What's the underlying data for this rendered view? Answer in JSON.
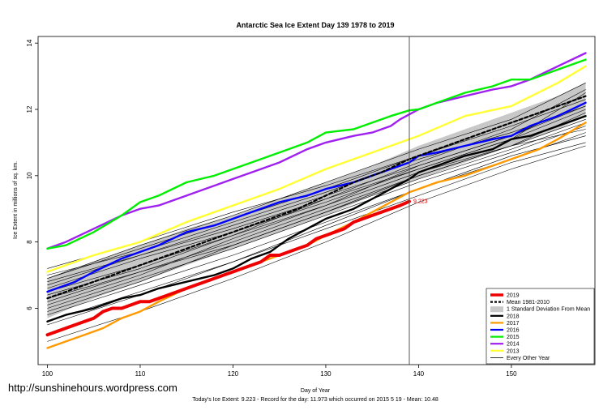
{
  "colors": {
    "y2019": "#ee0000",
    "mean": "#000000",
    "sd_band": "#c8c8c8",
    "y2018": "#000000",
    "y2017": "#ff9900",
    "y2016": "#0000ff",
    "y2015": "#00ee00",
    "y2014": "#a020f0",
    "y2013": "#ffff33",
    "other": "#000000"
  },
  "watermark": "http://sunshinehours.wordpress.com",
  "footer": "Today's Ice Extent: 9.223  - Record for the day: 11.973 which occurred on 2015 5 19  - Mean: 10.48",
  "chart_data": {
    "type": "line",
    "title": "Antarctic Sea Ice Extent Day 139 1978 to 2019",
    "xlabel": "Day of Year",
    "ylabel": "Ice Extent in millions of sq. km.",
    "xlim": [
      99,
      159
    ],
    "ylim": [
      4.3,
      14.2
    ],
    "x_ticks": [
      100,
      110,
      120,
      130,
      140,
      150
    ],
    "y_ticks": [
      6,
      8,
      10,
      12,
      14
    ],
    "current_day": 139,
    "current_value_label": "9.223",
    "legend_position": "bottom-right",
    "legend": [
      {
        "label": "2019",
        "key": "y2019",
        "style": "thick"
      },
      {
        "label": "Mean 1981-2010",
        "key": "mean",
        "style": "dashed"
      },
      {
        "label": "1 Standard Deviation From Mean",
        "key": "sd_band",
        "style": "band"
      },
      {
        "label": "2018",
        "key": "y2018",
        "style": "line"
      },
      {
        "label": "2017",
        "key": "y2017",
        "style": "line"
      },
      {
        "label": "2016",
        "key": "y2016",
        "style": "line"
      },
      {
        "label": "2015",
        "key": "y2015",
        "style": "line"
      },
      {
        "label": "2014",
        "key": "y2014",
        "style": "line"
      },
      {
        "label": "2013",
        "key": "y2013",
        "style": "line"
      },
      {
        "label": "Every Other Year",
        "key": "other",
        "style": "thin"
      }
    ],
    "sd_band": {
      "x": [
        100,
        105,
        110,
        115,
        120,
        125,
        130,
        135,
        140,
        145,
        150,
        155,
        158
      ],
      "upper": [
        6.9,
        7.4,
        7.9,
        8.4,
        8.8,
        9.3,
        9.8,
        10.3,
        10.9,
        11.4,
        11.9,
        12.4,
        12.8
      ],
      "lower": [
        5.7,
        6.3,
        6.8,
        7.3,
        7.8,
        8.3,
        8.8,
        9.4,
        9.9,
        10.4,
        10.9,
        11.4,
        11.8
      ]
    },
    "series": [
      {
        "name": "Every Other Year",
        "key": "other",
        "x": [
          100,
          110,
          120,
          130,
          140,
          150,
          158
        ],
        "values": [
          6.8,
          7.6,
          8.5,
          9.4,
          10.3,
          11.2,
          12.1
        ]
      },
      {
        "name": "Every Other Year",
        "key": "other",
        "x": [
          100,
          110,
          120,
          130,
          140,
          150,
          158
        ],
        "values": [
          6.0,
          6.9,
          7.8,
          8.8,
          9.8,
          10.7,
          11.5
        ]
      },
      {
        "name": "Every Other Year",
        "key": "other",
        "x": [
          100,
          110,
          120,
          130,
          140,
          150,
          158
        ],
        "values": [
          6.5,
          7.3,
          8.2,
          9.1,
          10.1,
          10.9,
          11.7
        ]
      },
      {
        "name": "Every Other Year",
        "key": "other",
        "x": [
          100,
          110,
          120,
          130,
          140,
          150,
          158
        ],
        "values": [
          5.9,
          6.8,
          7.9,
          8.9,
          10.0,
          10.9,
          11.4
        ]
      },
      {
        "name": "Every Other Year",
        "key": "other",
        "x": [
          100,
          110,
          120,
          130,
          140,
          150,
          158
        ],
        "values": [
          6.9,
          7.8,
          8.7,
          9.6,
          10.6,
          11.5,
          12.3
        ]
      },
      {
        "name": "Every Other Year",
        "key": "other",
        "x": [
          100,
          110,
          120,
          130,
          140,
          150,
          158
        ],
        "values": [
          6.3,
          7.1,
          8.0,
          9.0,
          10.0,
          10.9,
          11.9
        ]
      },
      {
        "name": "Every Other Year",
        "key": "other",
        "x": [
          100,
          110,
          120,
          130,
          140,
          150,
          158
        ],
        "values": [
          5.8,
          6.7,
          7.6,
          8.6,
          9.6,
          10.6,
          11.2
        ]
      },
      {
        "name": "Every Other Year",
        "key": "other",
        "x": [
          100,
          110,
          120,
          130,
          140,
          150,
          158
        ],
        "values": [
          7.2,
          8.0,
          8.9,
          9.7,
          10.6,
          11.6,
          12.4
        ]
      },
      {
        "name": "Every Other Year",
        "key": "other",
        "x": [
          100,
          110,
          120,
          130,
          140,
          150,
          158
        ],
        "values": [
          6.6,
          7.5,
          8.3,
          9.2,
          10.2,
          11.1,
          12.0
        ]
      },
      {
        "name": "Every Other Year",
        "key": "other",
        "x": [
          100,
          110,
          120,
          130,
          140,
          150,
          158
        ],
        "values": [
          6.1,
          7.0,
          8.1,
          9.1,
          10.3,
          11.2,
          12.2
        ]
      },
      {
        "name": "Every Other Year",
        "key": "other",
        "x": [
          100,
          110,
          120,
          130,
          140,
          150,
          158
        ],
        "values": [
          5.6,
          6.5,
          7.4,
          8.4,
          9.4,
          10.4,
          11.0
        ]
      },
      {
        "name": "Every Other Year",
        "key": "other",
        "x": [
          100,
          110,
          120,
          130,
          140,
          150,
          158
        ],
        "values": [
          7.0,
          7.7,
          8.6,
          9.5,
          10.5,
          11.3,
          12.1
        ]
      },
      {
        "name": "Every Other Year",
        "key": "other",
        "x": [
          100,
          110,
          120,
          130,
          140,
          150,
          158
        ],
        "values": [
          6.4,
          7.2,
          8.2,
          9.3,
          10.2,
          11.1,
          12.5
        ]
      },
      {
        "name": "Every Other Year",
        "key": "other",
        "x": [
          100,
          110,
          120,
          130,
          140,
          150,
          158
        ],
        "values": [
          6.2,
          7.1,
          7.9,
          8.9,
          9.9,
          10.8,
          11.6
        ]
      },
      {
        "name": "Every Other Year",
        "key": "other",
        "x": [
          100,
          110,
          120,
          130,
          140,
          150,
          158
        ],
        "values": [
          5.0,
          5.9,
          6.9,
          8.0,
          9.2,
          10.2,
          10.9
        ]
      },
      {
        "name": "Every Other Year",
        "key": "other",
        "x": [
          100,
          110,
          120,
          130,
          140,
          150,
          158
        ],
        "values": [
          6.7,
          7.6,
          8.4,
          9.3,
          10.4,
          11.4,
          12.6
        ]
      },
      {
        "name": "Every Other Year",
        "key": "other",
        "x": [
          100,
          110,
          120,
          130,
          140,
          150,
          158
        ],
        "values": [
          5.5,
          6.4,
          7.4,
          8.5,
          9.6,
          10.5,
          11.3
        ]
      },
      {
        "name": "Every Other Year",
        "key": "other",
        "x": [
          100,
          110,
          120,
          130,
          140,
          150,
          158
        ],
        "values": [
          6.9,
          7.9,
          8.8,
          9.8,
          10.8,
          11.7,
          12.8
        ]
      },
      {
        "name": "2013",
        "key": "y2013",
        "x": [
          100,
          105,
          110,
          115,
          120,
          125,
          130,
          135,
          140,
          145,
          150,
          155,
          158
        ],
        "values": [
          7.1,
          7.6,
          8.0,
          8.6,
          9.1,
          9.6,
          10.2,
          10.7,
          11.2,
          11.8,
          12.1,
          12.8,
          13.3
        ]
      },
      {
        "name": "2014",
        "key": "y2014",
        "x": [
          100,
          102,
          105,
          108,
          110,
          112,
          115,
          118,
          120,
          122,
          125,
          128,
          130,
          133,
          135,
          137,
          138,
          140,
          142,
          145,
          148,
          150,
          152,
          155,
          158
        ],
        "values": [
          7.8,
          8.0,
          8.4,
          8.8,
          9.0,
          9.1,
          9.4,
          9.7,
          9.9,
          10.1,
          10.4,
          10.8,
          11.0,
          11.2,
          11.3,
          11.5,
          11.7,
          12.0,
          12.2,
          12.4,
          12.6,
          12.7,
          12.9,
          13.3,
          13.7
        ]
      },
      {
        "name": "2015",
        "key": "y2015",
        "x": [
          100,
          102,
          105,
          108,
          110,
          112,
          115,
          118,
          120,
          122,
          125,
          128,
          130,
          133,
          135,
          137,
          139,
          140,
          142,
          145,
          148,
          150,
          152,
          155,
          158
        ],
        "values": [
          7.8,
          7.9,
          8.3,
          8.8,
          9.2,
          9.4,
          9.8,
          10.0,
          10.2,
          10.4,
          10.7,
          11.0,
          11.3,
          11.4,
          11.6,
          11.8,
          11.97,
          12.0,
          12.2,
          12.5,
          12.7,
          12.9,
          12.9,
          13.2,
          13.5
        ]
      },
      {
        "name": "2016",
        "key": "y2016",
        "x": [
          100,
          103,
          105,
          108,
          110,
          112,
          115,
          118,
          120,
          122,
          125,
          128,
          130,
          133,
          135,
          137,
          139,
          140,
          142,
          145,
          148,
          150,
          152,
          155,
          158
        ],
        "values": [
          6.5,
          6.8,
          7.1,
          7.5,
          7.7,
          7.9,
          8.3,
          8.5,
          8.7,
          8.9,
          9.2,
          9.4,
          9.6,
          9.8,
          10.0,
          10.2,
          10.4,
          10.6,
          10.7,
          10.9,
          11.1,
          11.2,
          11.5,
          11.8,
          12.2
        ]
      },
      {
        "name": "2017",
        "key": "y2017",
        "x": [
          100,
          102,
          104,
          106,
          108,
          110,
          112,
          115,
          118,
          120,
          122,
          125,
          128,
          130,
          133,
          135,
          137,
          139,
          140,
          142,
          145,
          148,
          150,
          153,
          155,
          158
        ],
        "values": [
          4.8,
          5.0,
          5.2,
          5.4,
          5.7,
          5.9,
          6.2,
          6.6,
          6.9,
          7.1,
          7.3,
          7.6,
          7.9,
          8.2,
          8.6,
          8.9,
          9.2,
          9.5,
          9.6,
          9.8,
          10.0,
          10.3,
          10.5,
          10.8,
          11.1,
          11.6
        ]
      },
      {
        "name": "2018",
        "key": "y2018",
        "x": [
          100,
          102,
          105,
          108,
          110,
          112,
          115,
          118,
          120,
          122,
          124,
          125,
          126,
          128,
          130,
          133,
          135,
          137,
          139,
          140,
          142,
          145,
          148,
          150,
          152,
          155,
          158
        ],
        "values": [
          5.6,
          5.8,
          6.0,
          6.3,
          6.4,
          6.6,
          6.8,
          7.0,
          7.2,
          7.5,
          7.7,
          7.9,
          8.1,
          8.4,
          8.7,
          9.0,
          9.3,
          9.6,
          9.9,
          10.1,
          10.3,
          10.6,
          10.8,
          11.1,
          11.2,
          11.5,
          11.8
        ]
      },
      {
        "name": "2019",
        "key": "y2019",
        "x": [
          100,
          101,
          102,
          103,
          104,
          105,
          106,
          107,
          108,
          109,
          110,
          111,
          112,
          113,
          114,
          115,
          116,
          117,
          118,
          119,
          120,
          121,
          122,
          123,
          124,
          125,
          126,
          127,
          128,
          129,
          130,
          131,
          132,
          133,
          134,
          135,
          136,
          137,
          138,
          139
        ],
        "values": [
          5.2,
          5.3,
          5.4,
          5.5,
          5.6,
          5.7,
          5.9,
          6.0,
          6.0,
          6.1,
          6.2,
          6.2,
          6.3,
          6.4,
          6.5,
          6.6,
          6.7,
          6.8,
          6.9,
          7.0,
          7.1,
          7.2,
          7.3,
          7.4,
          7.6,
          7.6,
          7.7,
          7.8,
          7.9,
          8.1,
          8.2,
          8.3,
          8.4,
          8.6,
          8.7,
          8.8,
          8.9,
          9.0,
          9.1,
          9.223
        ]
      },
      {
        "name": "Mean 1981-2010",
        "key": "mean",
        "x": [
          100,
          103,
          106,
          109,
          112,
          115,
          118,
          121,
          124,
          127,
          130,
          133,
          136,
          139,
          142,
          145,
          148,
          151,
          154,
          158
        ],
        "values": [
          6.3,
          6.6,
          6.9,
          7.2,
          7.5,
          7.8,
          8.1,
          8.4,
          8.7,
          9.0,
          9.4,
          9.8,
          10.1,
          10.5,
          10.8,
          11.1,
          11.4,
          11.7,
          12.0,
          12.4
        ]
      }
    ]
  }
}
